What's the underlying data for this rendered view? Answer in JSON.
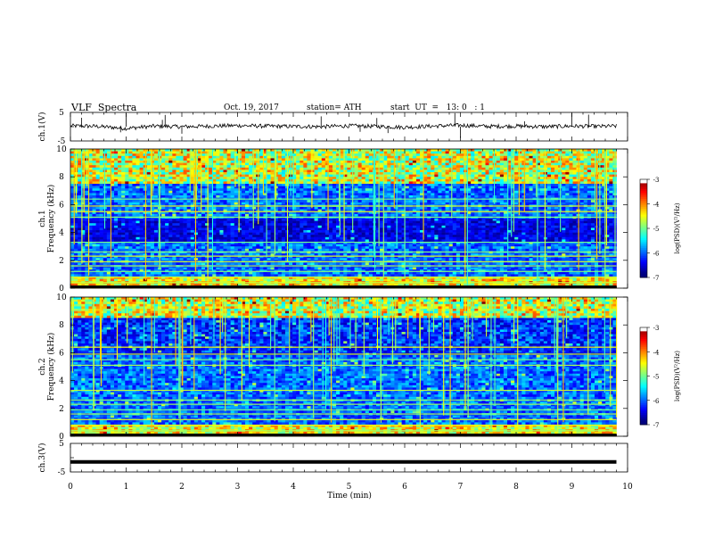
{
  "header": {
    "title": "VLF  Spectra",
    "date": "Oct. 19, 2017",
    "station": "station= ATH",
    "start": "start  UT  =   13: 0   : 1"
  },
  "chart_data": [
    {
      "type": "line",
      "panel": "ch1-waveform",
      "ylabel": "ch.1(V)",
      "ylim": [
        -5,
        5
      ],
      "yticks": [
        "5",
        "-5"
      ],
      "x": [
        0.0,
        0.5,
        1.0,
        1.5,
        2.0,
        2.5,
        3.0,
        3.5,
        4.0,
        4.5,
        5.0,
        5.5,
        6.0,
        6.5,
        7.0,
        7.5,
        8.0,
        8.5,
        9.0,
        9.5,
        9.8
      ],
      "values": [
        0.3,
        0.1,
        -0.6,
        0.2,
        0.0,
        0.2,
        0.4,
        0.2,
        0.1,
        0.0,
        0.3,
        0.1,
        -0.2,
        0.2,
        0.5,
        0.1,
        0.2,
        0.0,
        0.2,
        0.1,
        0.2
      ],
      "spikes_at_min": [
        0.2,
        0.9,
        1.0,
        1.65,
        1.7,
        2.0,
        4.5,
        5.2,
        5.5,
        5.7,
        6.9,
        7.0,
        8.15,
        9.0,
        9.3
      ]
    },
    {
      "type": "heatmap",
      "panel": "ch1-spectrogram",
      "ylabel": "ch.1\nFrequency  (kHz)",
      "ylim": [
        0,
        10
      ],
      "yticks": [
        "0",
        "2",
        "4",
        "6",
        "8",
        "10"
      ],
      "colorbar_label": "log(PSD)(V²/Hz)",
      "colorbar_ticks": [
        "-3",
        "-4",
        "-5",
        "-6",
        "-7"
      ],
      "colorbar_range": [
        -7,
        -3
      ],
      "dark_band_khz": [
        3.4,
        5.0
      ]
    },
    {
      "type": "heatmap",
      "panel": "ch2-spectrogram",
      "ylabel": "ch.2\nFrequency  (kHz)",
      "ylim": [
        0,
        10
      ],
      "yticks": [
        "0",
        "2",
        "4",
        "6",
        "8",
        "10"
      ],
      "colorbar_label": "log(PSD)(V²/Hz)",
      "colorbar_ticks": [
        "-3",
        "-4",
        "-5",
        "-6",
        "-7"
      ],
      "colorbar_range": [
        -7,
        -3
      ],
      "dark_band_khz": [
        5.8,
        8.5
      ]
    },
    {
      "type": "line",
      "panel": "ch3-waveform",
      "ylabel": "ch.3(V)",
      "ylim": [
        -5,
        5
      ],
      "yticks": [
        "5",
        "-5"
      ],
      "x": [
        0.0,
        9.8
      ],
      "values": [
        -1.5,
        -1.5
      ]
    }
  ],
  "xaxis": {
    "label": "Time  (min)",
    "xlim": [
      0,
      10
    ],
    "ticks": [
      "0",
      "1",
      "2",
      "3",
      "4",
      "5",
      "6",
      "7",
      "8",
      "9",
      "10"
    ]
  }
}
